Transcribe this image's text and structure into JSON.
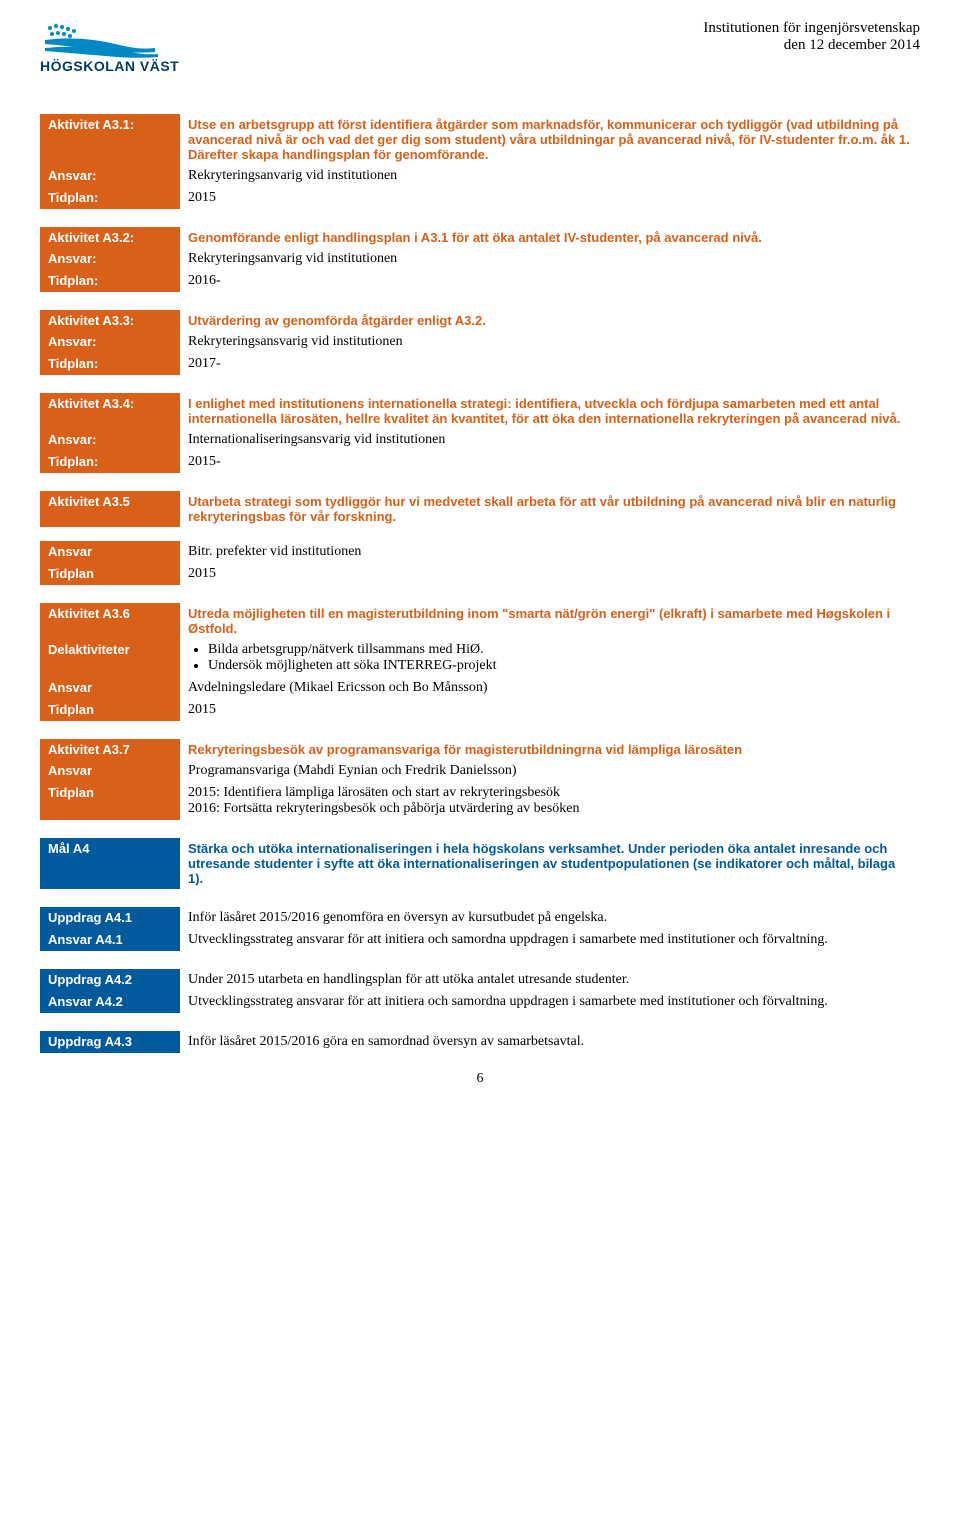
{
  "header": {
    "institution": "Institutionen för ingenjörsvetenskap",
    "date": "den 12 december 2014",
    "logo_text": "HÖGSKOLAN VÄST"
  },
  "colors": {
    "orange": "#d86018",
    "blue": "#005a9c",
    "logo_blue": "#0089c4"
  },
  "activities": [
    {
      "type": "orange",
      "rows": [
        {
          "label": "Aktivitet A3.1:",
          "value": "Utse en arbetsgrupp att först identifiera åtgärder som marknadsför, kommunicerar och tydliggör (vad utbildning på avancerad nivå är och vad det ger dig som student) våra utbildningar på avancerad nivå, för IV-studenter fr.o.m. åk 1. Därefter skapa handlingsplan för genomförande.",
          "bold": true
        },
        {
          "label": "Ansvar:",
          "value": "Rekryteringsanvarig vid institutionen",
          "bold": false
        },
        {
          "label": "Tidplan:",
          "value": "2015",
          "bold": false
        }
      ]
    },
    {
      "type": "orange",
      "rows": [
        {
          "label": "Aktivitet A3.2:",
          "value": "Genomförande enligt handlingsplan i A3.1 för att öka antalet IV-studenter, på avancerad nivå.",
          "bold": true
        },
        {
          "label": "Ansvar:",
          "value": "Rekryteringsanvarig vid institutionen",
          "bold": false
        },
        {
          "label": "Tidplan:",
          "value": "2016-",
          "bold": false
        }
      ]
    },
    {
      "type": "orange",
      "rows": [
        {
          "label": "Aktivitet A3.3:",
          "value": "Utvärdering av genomförda åtgärder enligt A3.2.",
          "bold": true
        },
        {
          "label": "Ansvar:",
          "value": "Rekryteringsansvarig vid institutionen",
          "bold": false
        },
        {
          "label": "Tidplan:",
          "value": "2017-",
          "bold": false
        }
      ]
    },
    {
      "type": "orange",
      "rows": [
        {
          "label": "Aktivitet A3.4:",
          "value": "I enlighet med institutionens internationella strategi: identifiera, utveckla och fördjupa samarbeten med ett antal internationella lärosäten, hellre kvalitet än kvantitet, för att öka den internationella rekryteringen på avancerad nivå.",
          "bold": true
        },
        {
          "label": "Ansvar:",
          "value": "Internationaliseringsansvarig vid institutionen",
          "bold": false
        },
        {
          "label": "Tidplan:",
          "value": "2015-",
          "bold": false
        }
      ]
    },
    {
      "type": "orange",
      "rows": [
        {
          "label": "Aktivitet A3.5",
          "value": "Utarbeta strategi som tydliggör hur vi medvetet skall arbeta för att vår utbildning på avancerad nivå blir en naturlig rekryteringsbas för vår forskning.",
          "bold": true
        },
        {
          "label": "",
          "value": "",
          "bold": false,
          "spacer": true
        },
        {
          "label": "Ansvar",
          "value": "Bitr. prefekter vid institutionen",
          "bold": false
        },
        {
          "label": "Tidplan",
          "value": "2015",
          "bold": false
        }
      ]
    },
    {
      "type": "orange",
      "rows": [
        {
          "label": "Aktivitet A3.6",
          "value": "Utreda möjligheten till en magisterutbildning inom \"smarta nät/grön energi\" (elkraft) i samarbete med Høgskolen i Østfold.",
          "bold": true
        },
        {
          "label": "Delaktiviteter",
          "value": "",
          "bold": false,
          "bullets": [
            "Bilda arbetsgrupp/nätverk tillsammans med HiØ.",
            "Undersök möjligheten att söka INTERREG-projekt"
          ]
        },
        {
          "label": "Ansvar",
          "value": "Avdelningsledare (Mikael Ericsson och Bo Månsson)",
          "bold": false
        },
        {
          "label": "Tidplan",
          "value": "2015",
          "bold": false
        }
      ]
    },
    {
      "type": "orange",
      "rows": [
        {
          "label": "Aktivitet A3.7",
          "value": "Rekryteringsbesök av programansvariga för magisterutbildningrna vid lämpliga lärosäten",
          "bold": true
        },
        {
          "label": "Ansvar",
          "value": "Programansvariga (Mahdi Eynian och Fredrik Danielsson)",
          "bold": false
        },
        {
          "label": "Tidplan",
          "value": "2015: Identifiera lämpliga lärosäten och start av rekryteringsbesök\n2016: Fortsätta rekryteringsbesök och påbörja utvärdering av besöken",
          "bold": false
        }
      ]
    },
    {
      "type": "blue",
      "rows": [
        {
          "label": "Mål A4",
          "value": "Stärka och utöka internationaliseringen i hela högskolans verksamhet. Under perioden öka antalet inresande och utresande studenter i syfte att öka internationaliseringen av studentpopulationen (se indikatorer och måltal, bilaga 1).",
          "bold": true
        }
      ]
    },
    {
      "type": "blue",
      "rows": [
        {
          "label": "Uppdrag A4.1",
          "value": "Inför läsåret 2015/2016 genomföra en översyn av kursutbudet på engelska.",
          "bold": false
        },
        {
          "label": "Ansvar A4.1",
          "value": "Utvecklingsstrateg ansvarar för att initiera och samordna uppdragen i samarbete med institutioner och förvaltning.",
          "bold": false
        }
      ]
    },
    {
      "type": "blue",
      "rows": [
        {
          "label": "Uppdrag A4.2",
          "value": "Under 2015 utarbeta en handlingsplan för att utöka antalet utresande studenter.",
          "bold": false
        },
        {
          "label": "Ansvar A4.2",
          "value": "Utvecklingsstrateg ansvarar för att initiera och samordna uppdragen i samarbete med institutioner och förvaltning.",
          "bold": false
        }
      ]
    },
    {
      "type": "blue",
      "rows": [
        {
          "label": "Uppdrag A4.3",
          "value": "Inför läsåret 2015/2016 göra en samordnad översyn av samarbetsavtal.",
          "bold": false
        }
      ]
    }
  ],
  "page_number": "6"
}
